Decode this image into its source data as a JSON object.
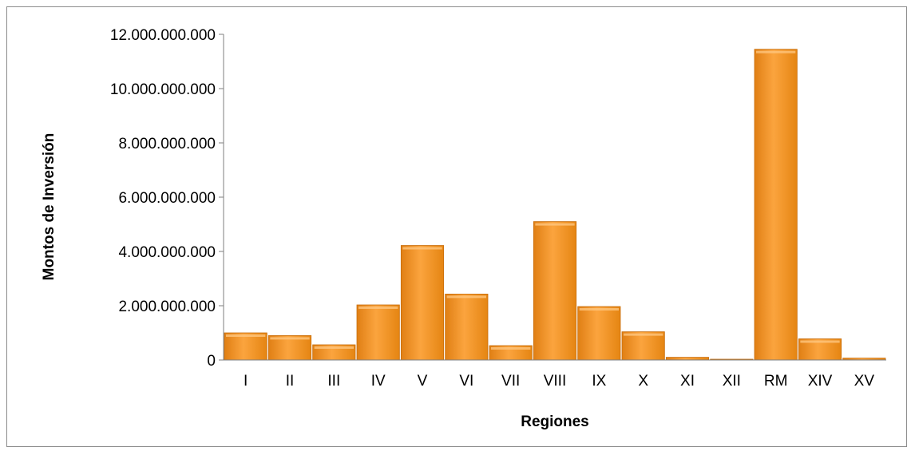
{
  "chart_data": {
    "type": "bar",
    "title": "",
    "xlabel": "Regiones",
    "ylabel": "Montos de Inversión",
    "categories": [
      "I",
      "II",
      "III",
      "IV",
      "V",
      "VI",
      "VII",
      "VIII",
      "IX",
      "X",
      "XI",
      "XII",
      "RM",
      "XIV",
      "XV"
    ],
    "values": [
      1000000000,
      900000000,
      560000000,
      2030000000,
      4220000000,
      2430000000,
      530000000,
      5100000000,
      1970000000,
      1040000000,
      100000000,
      10000000,
      11450000000,
      780000000,
      70000000
    ],
    "ylim": [
      0,
      12000000000
    ],
    "yticks": [
      0,
      2000000000,
      4000000000,
      6000000000,
      8000000000,
      10000000000,
      12000000000
    ],
    "ytick_labels": [
      "0",
      "2.000.000.000",
      "4.000.000.000",
      "6.000.000.000",
      "8.000.000.000",
      "10.000.000.000",
      "12.000.000.000"
    ],
    "grid": false,
    "legend": "none",
    "bar_color": "#f7941d"
  }
}
